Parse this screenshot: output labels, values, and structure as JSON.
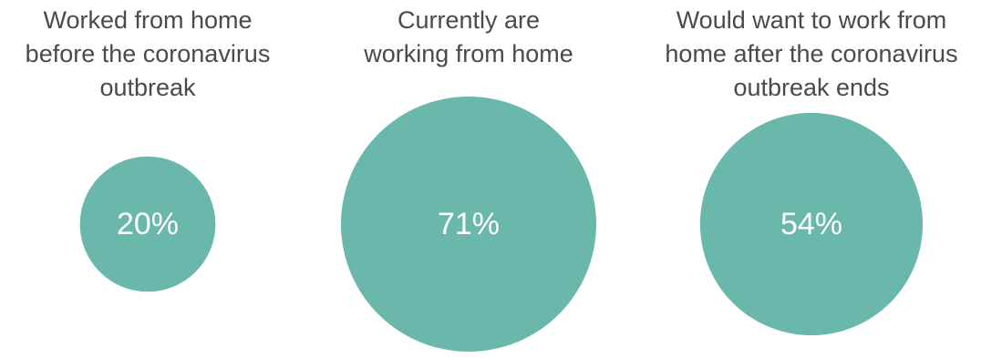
{
  "chart_data": {
    "type": "bubble",
    "categories": [
      "Worked from home before the coronavirus outbreak",
      "Currently are working from home",
      "Would want to work from home after the coronavirus outbreak ends"
    ],
    "values": [
      20,
      71,
      54
    ],
    "value_labels": [
      "20%",
      "71%",
      "54%"
    ],
    "category_lines": [
      [
        "Worked from home",
        "before the coronavirus",
        "outbreak"
      ],
      [
        "Currently are",
        "working from home"
      ],
      [
        "Would want to work from",
        "home after the coronavirus",
        "outbreak ends"
      ]
    ],
    "color": "#6ab7ab",
    "value_text_color": "#ffffff",
    "label_color": "#4a4a4a",
    "legend": "none",
    "grid": false
  }
}
